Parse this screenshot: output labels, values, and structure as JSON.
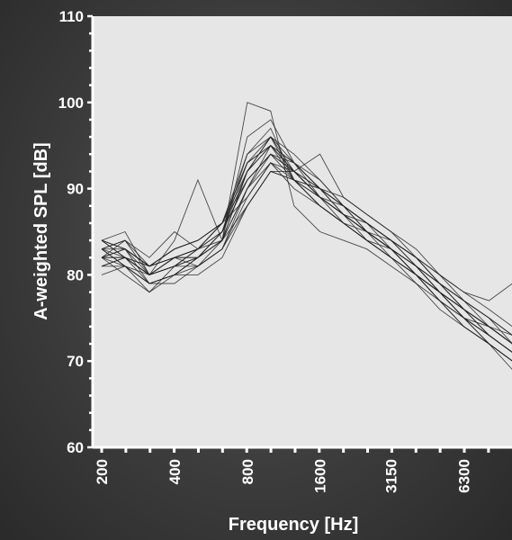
{
  "chart_data": {
    "type": "line",
    "title": "",
    "xlabel": "Frequency [Hz]",
    "ylabel": "A-weighted SPL [dB]",
    "x_scale": "log (1/3-octave bands)",
    "x_ticks": [
      "200",
      "400",
      "800",
      "1600",
      "3150",
      "6300"
    ],
    "y_ticks": [
      "60",
      "70",
      "80",
      "90",
      "100",
      "110"
    ],
    "ylim": [
      60,
      110
    ],
    "grid": false,
    "legend": "none",
    "colors": {
      "plot_background": "#e6e6e6",
      "lines": "#202020",
      "frame": "#3c3c3c",
      "text": "#ffffff"
    },
    "x": [
      200,
      250,
      315,
      400,
      500,
      630,
      800,
      1000,
      1250,
      1600,
      2000,
      2500,
      3150,
      4000,
      5000,
      6300,
      8000,
      10000
    ],
    "series": [
      {
        "values": [
          84,
          85,
          80,
          82,
          81,
          83,
          90,
          95,
          92,
          90,
          88,
          86,
          84,
          81,
          79,
          76,
          74,
          72
        ]
      },
      {
        "values": [
          82,
          81,
          79,
          80,
          82,
          84,
          92,
          96,
          93,
          89,
          87,
          85,
          83,
          80,
          78,
          75,
          73,
          71
        ]
      },
      {
        "values": [
          83,
          82,
          80,
          81,
          82,
          85,
          94,
          97,
          91,
          88,
          86,
          84,
          82,
          80,
          77,
          75,
          72,
          70
        ]
      },
      {
        "values": [
          81,
          82,
          79,
          79,
          81,
          84,
          96,
          98,
          93,
          90,
          87,
          85,
          83,
          81,
          78,
          76,
          73,
          71
        ]
      },
      {
        "values": [
          84,
          83,
          81,
          83,
          84,
          86,
          89,
          93,
          90,
          88,
          86,
          85,
          82,
          80,
          78,
          75,
          74,
          72
        ]
      },
      {
        "values": [
          82,
          83,
          80,
          82,
          83,
          86,
          91,
          94,
          92,
          89,
          87,
          84,
          82,
          79,
          77,
          75,
          72,
          70
        ]
      },
      {
        "values": [
          80,
          81,
          78,
          80,
          80,
          82,
          88,
          92,
          91,
          90,
          88,
          86,
          84,
          81,
          79,
          76,
          74,
          72
        ]
      },
      {
        "values": [
          83,
          84,
          82,
          85,
          83,
          86,
          93,
          96,
          92,
          89,
          86,
          84,
          82,
          80,
          77,
          74,
          72,
          70
        ]
      },
      {
        "values": [
          84,
          82,
          80,
          84,
          91,
          84,
          100,
          99,
          88,
          85,
          84,
          83,
          81,
          79,
          76,
          74,
          72,
          69
        ]
      },
      {
        "values": [
          82,
          84,
          81,
          82,
          82,
          84,
          90,
          94,
          93,
          91,
          88,
          86,
          84,
          82,
          79,
          77,
          75,
          73
        ]
      },
      {
        "values": [
          81,
          82,
          80,
          81,
          81,
          83,
          88,
          92,
          92,
          94,
          89,
          87,
          85,
          82,
          80,
          77,
          75,
          73
        ]
      },
      {
        "values": [
          83,
          81,
          79,
          80,
          82,
          84,
          92,
          95,
          91,
          88,
          86,
          84,
          83,
          81,
          78,
          76,
          74,
          72
        ]
      },
      {
        "values": [
          82,
          80,
          78,
          81,
          82,
          85,
          93,
          95,
          92,
          89,
          87,
          85,
          83,
          80,
          78,
          75,
          73,
          71
        ]
      },
      {
        "values": [
          83,
          83,
          81,
          82,
          83,
          85,
          91,
          94,
          91,
          89,
          87,
          86,
          84,
          82,
          80,
          78,
          76,
          74
        ]
      },
      {
        "values": [
          84,
          82,
          81,
          83,
          84,
          86,
          93,
          95,
          93,
          90,
          88,
          86,
          83,
          80,
          77,
          74,
          72,
          70
        ]
      },
      {
        "values": [
          82,
          82,
          80,
          81,
          83,
          84,
          90,
          93,
          92,
          89,
          88,
          86,
          84,
          82,
          79,
          76,
          74,
          72
        ]
      },
      {
        "values": [
          81,
          81,
          79,
          80,
          81,
          83,
          89,
          93,
          91,
          89,
          87,
          85,
          83,
          81,
          79,
          77,
          75,
          72
        ]
      },
      {
        "values": [
          83,
          84,
          80,
          82,
          82,
          85,
          92,
          96,
          94,
          91,
          88,
          85,
          83,
          81,
          78,
          76,
          73,
          71
        ]
      },
      {
        "values": [
          82,
          82,
          81,
          82,
          83,
          85,
          91,
          94,
          92,
          90,
          87,
          85,
          84,
          82,
          79,
          77,
          74,
          73
        ]
      },
      {
        "values": [
          83,
          81,
          80,
          81,
          83,
          86,
          94,
          96,
          91,
          88,
          86,
          84,
          82,
          80,
          78,
          75,
          73,
          71
        ]
      },
      {
        "values": [
          82,
          83,
          79,
          80,
          82,
          84,
          88,
          92,
          91,
          90,
          89,
          87,
          85,
          83,
          80,
          78,
          77,
          79
        ]
      },
      {
        "values": [
          84,
          83,
          81,
          83,
          84,
          86,
          92,
          95,
          93,
          90,
          88,
          85,
          83,
          80,
          78,
          76,
          74,
          72
        ]
      }
    ]
  }
}
